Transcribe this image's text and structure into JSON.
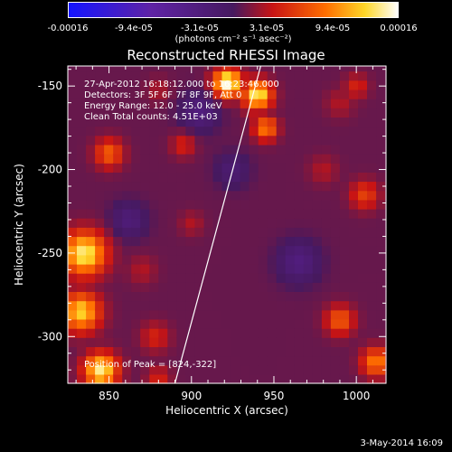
{
  "colorbar": {
    "ticks": [
      "-0.00016",
      "-9.4e-05",
      "-3.1e-05",
      "3.1e-05",
      "9.4e-05",
      "0.00016"
    ],
    "units_label": "(photons cm⁻² s⁻¹ asec⁻²)"
  },
  "info": {
    "line1": "27-Apr-2012 16:18:12.000 to 16:23:46.000",
    "line2": "Detectors: 3F 5F 6F 7F 8F 9F, Att 0",
    "line3": "Energy Range: 12.0 - 25.0 keV",
    "line4": "Clean     Total counts: 4.51E+03",
    "peak": "Position of Peak = [824,-322]"
  },
  "date_stamp": "3-May-2014 16:09",
  "chart_data": {
    "type": "heatmap",
    "title": "Reconstructed RHESSI Image",
    "xlabel": "Heliocentric X (arcsec)",
    "ylabel": "Heliocentric Y (arcsec)",
    "xlim": [
      825,
      1018
    ],
    "ylim": [
      -328,
      -138
    ],
    "xticks": [
      850,
      900,
      950,
      1000
    ],
    "yticks": [
      -150,
      -200,
      -250,
      -300
    ],
    "grid": false,
    "clim": [
      -0.00016,
      0.00016
    ],
    "limb_line": {
      "x": [
        890,
        942
      ],
      "y": [
        -328,
        -138
      ]
    },
    "blobs": [
      [
        922,
        -148,
        0.95,
        6
      ],
      [
        940,
        -155,
        0.9,
        6
      ],
      [
        945,
        -175,
        0.75,
        5
      ],
      [
        880,
        -152,
        0.55,
        5
      ],
      [
        895,
        -185,
        0.6,
        5
      ],
      [
        850,
        -190,
        0.7,
        6
      ],
      [
        870,
        -215,
        0.45,
        5
      ],
      [
        835,
        -250,
        0.9,
        9
      ],
      [
        833,
        -285,
        0.85,
        8
      ],
      [
        845,
        -320,
        0.9,
        7
      ],
      [
        870,
        -260,
        0.55,
        6
      ],
      [
        878,
        -300,
        0.6,
        6
      ],
      [
        880,
        -325,
        0.6,
        5
      ],
      [
        900,
        -232,
        0.55,
        5
      ],
      [
        905,
        -250,
        0.45,
        4
      ],
      [
        990,
        -160,
        0.55,
        6
      ],
      [
        1000,
        -150,
        0.6,
        5
      ],
      [
        980,
        -200,
        0.55,
        6
      ],
      [
        1005,
        -215,
        0.65,
        6
      ],
      [
        992,
        -245,
        0.45,
        5
      ],
      [
        990,
        -290,
        0.7,
        6
      ],
      [
        1012,
        -315,
        0.75,
        6
      ],
      [
        950,
        -295,
        0.45,
        5
      ],
      [
        935,
        -262,
        0.35,
        4
      ],
      [
        960,
        -240,
        0.3,
        4
      ],
      [
        868,
        -175,
        0.4,
        4
      ],
      [
        955,
        -318,
        0.35,
        4
      ]
    ]
  }
}
